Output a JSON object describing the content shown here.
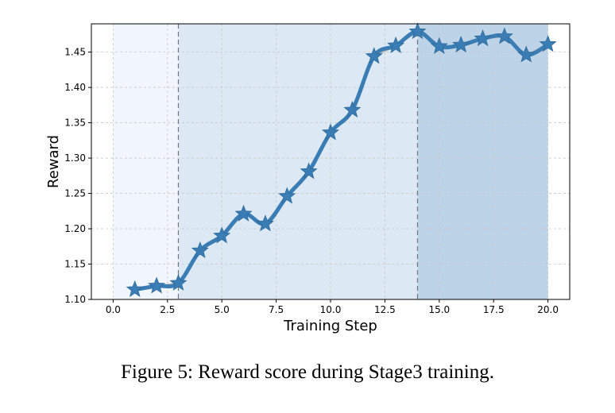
{
  "caption": "Figure 5: Reward score during Stage3 training.",
  "chart_data": {
    "type": "line",
    "xlabel": "Training Step",
    "ylabel": "Reward",
    "xlim": [
      -1.0,
      21.0
    ],
    "ylim": [
      1.1,
      1.49
    ],
    "x_ticks": [
      "0.0",
      "2.5",
      "5.0",
      "7.5",
      "10.0",
      "12.5",
      "15.0",
      "17.5",
      "20.0"
    ],
    "y_ticks": [
      "1.10",
      "1.15",
      "1.20",
      "1.25",
      "1.30",
      "1.35",
      "1.40",
      "1.45"
    ],
    "grid": true,
    "shaded_regions": [
      {
        "x": [
          0.0,
          3.0
        ],
        "color": "#f1f6fc"
      },
      {
        "x": [
          3.0,
          14.0
        ],
        "color": "#dce9f4"
      },
      {
        "x": [
          14.0,
          20.0
        ],
        "color": "#bcd3e8"
      }
    ],
    "vlines": [
      3.0,
      14.0
    ],
    "series": [
      {
        "x": [
          1,
          2,
          3,
          4,
          5,
          6,
          7,
          8,
          9,
          10,
          11,
          12,
          13,
          14,
          15,
          16,
          17,
          18,
          19,
          20
        ],
        "values": [
          1.114,
          1.119,
          1.123,
          1.169,
          1.19,
          1.221,
          1.207,
          1.246,
          1.281,
          1.336,
          1.368,
          1.444,
          1.459,
          1.479,
          1.458,
          1.46,
          1.469,
          1.472,
          1.446,
          1.461
        ],
        "color": "#3a7db5",
        "marker": "star"
      }
    ]
  }
}
